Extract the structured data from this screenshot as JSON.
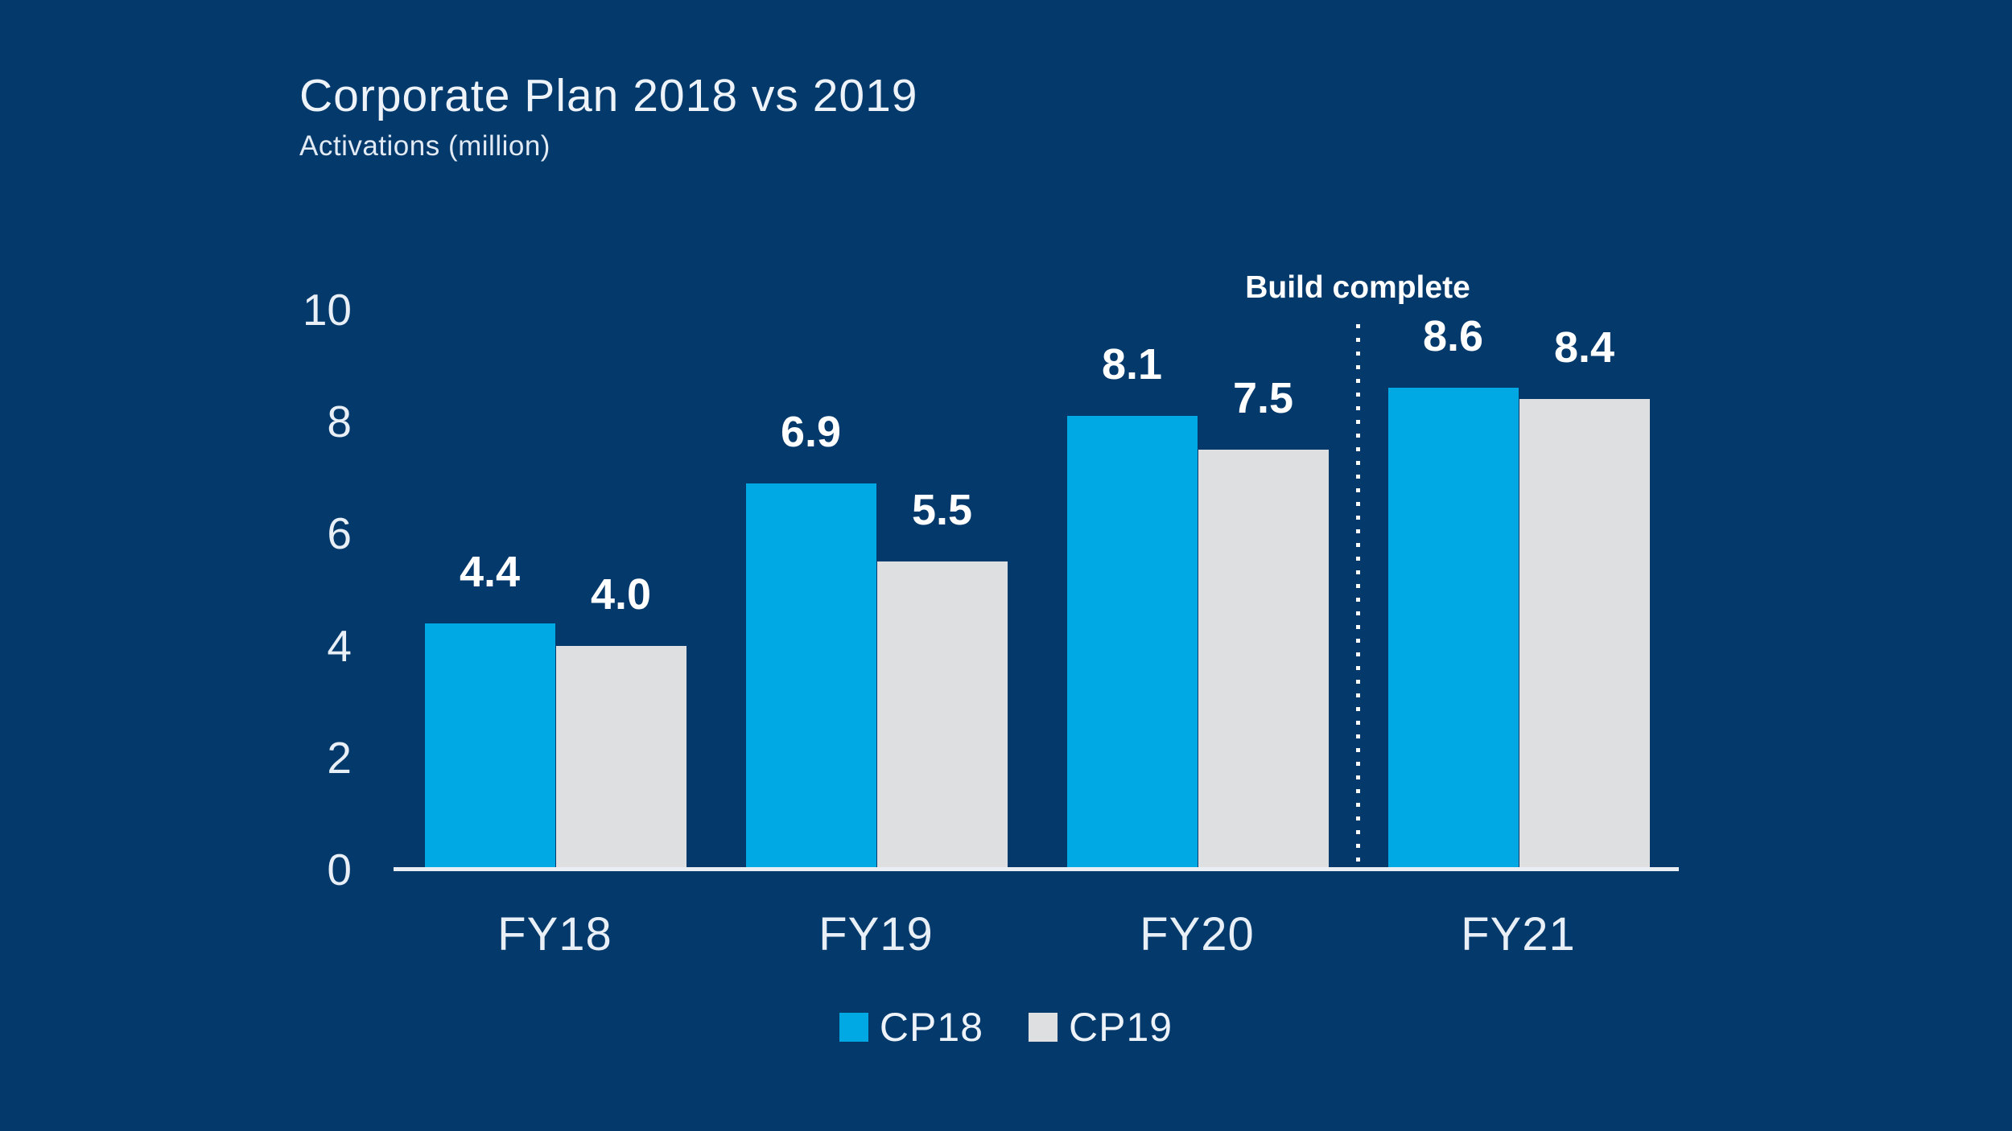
{
  "page": {
    "background_color": "#04396C"
  },
  "chart_data": {
    "type": "bar",
    "title": "Corporate Plan 2018 vs 2019",
    "subtitle": "Activations (million)",
    "categories": [
      "FY18",
      "FY19",
      "FY20",
      "FY21"
    ],
    "series": [
      {
        "name": "CP18",
        "color": "#00A9E4",
        "values": [
          4.4,
          6.9,
          8.1,
          8.6
        ]
      },
      {
        "name": "CP19",
        "color": "#DEDFE0",
        "values": [
          4.0,
          5.5,
          7.5,
          8.4
        ]
      }
    ],
    "y_ticks": [
      0,
      2,
      4,
      6,
      8,
      10
    ],
    "ylim": [
      0,
      10
    ],
    "grid": false,
    "value_labels": true,
    "value_label_decimals": 1,
    "legend_position": "bottom-center",
    "annotation": {
      "text": "Build complete",
      "divider_before_category": "FY21",
      "divider_style": "dotted-vertical-line"
    },
    "colors": {
      "background": "#04396C",
      "axis_line": "#E9EFF4",
      "tick_text": "#E8EFF6",
      "value_text": "#FFFFFF",
      "title_text": "#EDF3F9"
    }
  }
}
